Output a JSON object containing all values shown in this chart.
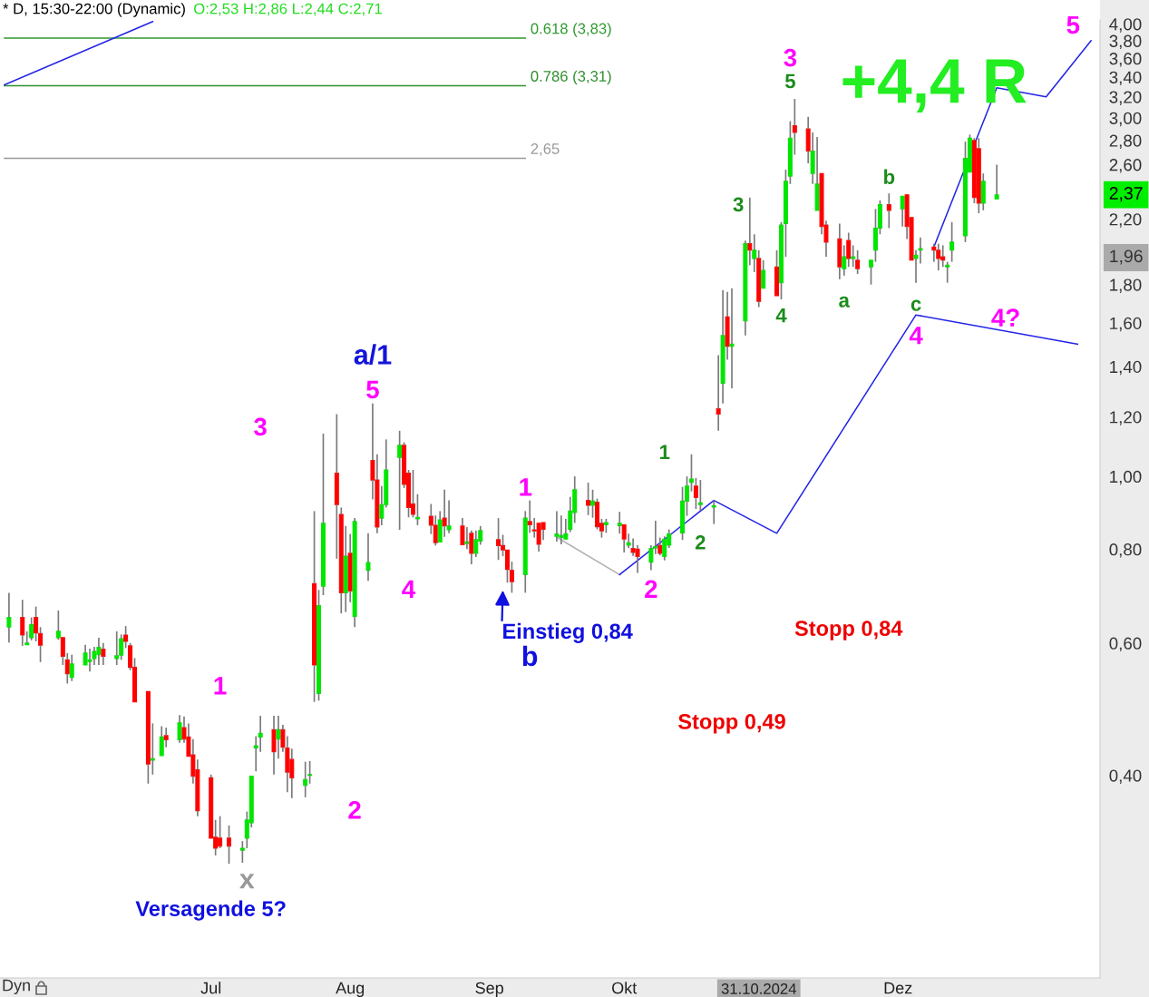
{
  "chart_data": {
    "type": "candlestick",
    "title": "* D, 15:30-22:00 (Dynamic)",
    "subtitle": "O:2,53 H:2,86 L:2,44 C:2,71",
    "x": [
      "2024-05-17",
      "2024-05-20",
      "2024-05-21",
      "2024-05-22",
      "2024-05-23",
      "2024-05-24",
      "2024-05-28",
      "2024-05-29",
      "2024-05-30",
      "2024-05-31",
      "2024-06-03",
      "2024-06-04",
      "2024-06-05",
      "2024-06-06",
      "2024-06-07",
      "2024-06-10",
      "2024-06-11",
      "2024-06-12",
      "2024-06-13",
      "2024-06-14",
      "2024-06-17",
      "2024-06-18",
      "2024-06-20",
      "2024-06-21",
      "2024-06-24",
      "2024-06-25",
      "2024-06-26",
      "2024-06-27",
      "2024-06-28",
      "2024-07-01",
      "2024-07-02",
      "2024-07-03",
      "2024-07-05",
      "2024-07-08",
      "2024-07-09",
      "2024-07-10",
      "2024-07-11",
      "2024-07-12",
      "2024-07-15",
      "2024-07-16",
      "2024-07-17",
      "2024-07-18",
      "2024-07-19",
      "2024-07-22",
      "2024-07-23",
      "2024-07-24",
      "2024-07-25",
      "2024-07-26",
      "2024-07-29",
      "2024-07-30",
      "2024-07-31",
      "2024-08-01",
      "2024-08-02",
      "2024-08-05",
      "2024-08-06",
      "2024-08-07",
      "2024-08-08",
      "2024-08-09",
      "2024-08-12",
      "2024-08-13",
      "2024-08-14",
      "2024-08-15",
      "2024-08-16",
      "2024-08-19",
      "2024-08-20",
      "2024-08-21",
      "2024-08-22",
      "2024-08-23",
      "2024-08-26",
      "2024-08-27",
      "2024-08-28",
      "2024-08-29",
      "2024-08-30",
      "2024-09-03",
      "2024-09-04",
      "2024-09-05",
      "2024-09-06",
      "2024-09-09",
      "2024-09-10",
      "2024-09-11",
      "2024-09-12",
      "2024-09-13",
      "2024-09-16",
      "2024-09-17",
      "2024-09-18",
      "2024-09-19",
      "2024-09-20",
      "2024-09-23",
      "2024-09-24",
      "2024-09-25",
      "2024-09-26",
      "2024-09-27",
      "2024-09-30",
      "2024-10-01",
      "2024-10-02",
      "2024-10-03",
      "2024-10-04",
      "2024-10-07",
      "2024-10-08",
      "2024-10-09",
      "2024-10-10",
      "2024-10-11",
      "2024-10-14",
      "2024-10-15",
      "2024-10-16",
      "2024-10-17",
      "2024-10-18",
      "2024-10-21",
      "2024-10-22",
      "2024-10-23",
      "2024-10-24",
      "2024-10-25",
      "2024-10-28",
      "2024-10-29",
      "2024-10-30",
      "2024-10-31",
      "2024-11-01",
      "2024-11-04",
      "2024-11-05",
      "2024-11-06",
      "2024-11-07",
      "2024-11-08",
      "2024-11-11",
      "2024-11-12",
      "2024-11-13",
      "2024-11-14",
      "2024-11-15",
      "2024-11-18",
      "2024-11-19",
      "2024-11-20",
      "2024-11-21",
      "2024-11-22",
      "2024-11-25",
      "2024-11-26",
      "2024-11-27",
      "2024-11-29",
      "2024-12-02",
      "2024-12-03",
      "2024-12-04",
      "2024-12-05",
      "2024-12-06",
      "2024-12-09",
      "2024-12-10",
      "2024-12-11",
      "2024-12-12",
      "2024-12-13",
      "2024-12-16",
      "2024-12-17",
      "2024-12-18",
      "2024-12-19",
      "2024-12-20",
      "2024-12-23"
    ],
    "ohlc": [
      [
        0.63,
        0.7,
        0.601,
        0.649
      ],
      [
        0.649,
        0.685,
        0.595,
        0.615
      ],
      [
        0.597,
        0.622,
        0.595,
        0.6
      ],
      [
        0.61,
        0.649,
        0.605,
        0.635
      ],
      [
        0.649,
        0.671,
        0.603,
        0.619
      ],
      [
        0.618,
        0.63,
        0.566,
        0.596
      ],
      [
        0.61,
        0.663,
        0.606,
        0.622
      ],
      [
        0.61,
        0.61,
        0.561,
        0.576
      ],
      [
        0.57,
        0.582,
        0.53,
        0.546
      ],
      [
        0.54,
        0.579,
        0.534,
        0.563
      ],
      [
        0.561,
        0.597,
        0.56,
        0.582
      ],
      [
        0.567,
        0.59,
        0.55,
        0.57
      ],
      [
        0.572,
        0.593,
        0.561,
        0.585
      ],
      [
        0.579,
        0.61,
        0.561,
        0.592
      ],
      [
        0.589,
        0.6,
        0.561,
        0.576
      ],
      [
        0.572,
        0.622,
        0.561,
        0.577
      ],
      [
        0.578,
        0.616,
        0.57,
        0.608
      ],
      [
        0.615,
        0.632,
        0.591,
        0.603
      ],
      [
        0.595,
        0.6,
        0.552,
        0.557
      ],
      [
        0.557,
        0.573,
        0.499,
        0.501
      ],
      [
        0.517,
        0.519,
        0.39,
        0.414
      ],
      [
        0.419,
        0.469,
        0.401,
        0.421
      ],
      [
        0.425,
        0.465,
        0.423,
        0.45
      ],
      [
        0.452,
        0.463,
        0.436,
        0.446
      ],
      [
        0.446,
        0.481,
        0.442,
        0.47
      ],
      [
        0.463,
        0.479,
        0.442,
        0.447
      ],
      [
        0.45,
        0.469,
        0.422,
        0.424
      ],
      [
        0.426,
        0.447,
        0.39,
        0.399
      ],
      [
        0.407,
        0.42,
        0.353,
        0.359
      ],
      [
        0.397,
        0.401,
        0.33,
        0.33
      ],
      [
        0.331,
        0.349,
        0.313,
        0.32
      ],
      [
        0.33,
        0.353,
        0.32,
        0.322
      ],
      [
        0.33,
        0.343,
        0.305,
        0.322
      ],
      [
        0.318,
        0.327,
        0.306,
        0.32
      ],
      [
        0.33,
        0.358,
        0.32,
        0.349
      ],
      [
        0.346,
        0.401,
        0.341,
        0.399
      ],
      [
        0.435,
        0.451,
        0.405,
        0.438
      ],
      [
        0.45,
        0.48,
        0.43,
        0.455
      ],
      [
        0.46,
        0.48,
        0.401,
        0.43
      ],
      [
        0.447,
        0.48,
        0.421,
        0.46
      ],
      [
        0.46,
        0.467,
        0.43,
        0.436
      ],
      [
        0.435,
        0.451,
        0.38,
        0.404
      ],
      [
        0.42,
        0.434,
        0.373,
        0.397
      ],
      [
        0.388,
        0.417,
        0.374,
        0.395
      ],
      [
        0.4,
        0.418,
        0.39,
        0.401
      ],
      [
        0.72,
        0.899,
        0.501,
        0.561
      ],
      [
        0.514,
        0.706,
        0.503,
        0.673
      ],
      [
        0.714,
        1.14,
        0.695,
        0.866
      ],
      [
        1.01,
        1.21,
        0.777,
        0.917
      ],
      [
        0.89,
        0.909,
        0.657,
        0.7
      ],
      [
        0.7,
        0.859,
        0.66,
        0.783
      ],
      [
        0.79,
        0.838,
        0.68,
        0.704
      ],
      [
        0.651,
        0.88,
        0.63,
        0.871
      ],
      [
        0.75,
        0.84,
        0.726,
        0.768
      ],
      [
        1.05,
        1.25,
        0.932,
        0.989
      ],
      [
        0.989,
        1.07,
        0.84,
        0.856
      ],
      [
        0.88,
        0.971,
        0.861,
        0.917
      ],
      [
        0.917,
        1.12,
        0.909,
        1.02
      ],
      [
        1.06,
        1.15,
        0.849,
        1.1
      ],
      [
        1.1,
        1.11,
        0.965,
        0.976
      ],
      [
        1.01,
        1.02,
        0.882,
        0.909
      ],
      [
        0.919,
        1.02,
        0.882,
        0.89
      ],
      [
        0.878,
        0.947,
        0.861,
        0.882
      ],
      [
        0.885,
        0.919,
        0.838,
        0.861
      ],
      [
        0.861,
        0.887,
        0.809,
        0.816
      ],
      [
        0.818,
        0.899,
        0.814,
        0.875
      ],
      [
        0.88,
        0.96,
        0.831,
        0.859
      ],
      [
        0.849,
        0.929,
        0.84,
        0.859
      ],
      [
        0.859,
        0.88,
        0.809,
        0.811
      ],
      [
        0.814,
        0.856,
        0.8,
        0.818
      ],
      [
        0.84,
        0.847,
        0.764,
        0.79
      ],
      [
        0.79,
        0.847,
        0.781,
        0.824
      ],
      [
        0.82,
        0.859,
        0.811,
        0.847
      ],
      [
        0.824,
        0.88,
        0.774,
        0.809
      ],
      [
        0.809,
        0.836,
        0.783,
        0.798
      ],
      [
        0.798,
        0.798,
        0.722,
        0.752
      ],
      [
        0.75,
        0.77,
        0.7,
        0.724
      ],
      [
        0.74,
        0.899,
        0.7,
        0.88
      ],
      [
        0.871,
        0.929,
        0.841,
        0.862
      ],
      [
        0.849,
        0.88,
        0.829,
        0.846
      ],
      [
        0.866,
        0.871,
        0.794,
        0.812
      ],
      [
        0.868,
        0.873,
        0.823,
        0.85
      ],
      [
        0.832,
        0.899,
        0.819,
        0.838
      ],
      [
        0.829,
        0.887,
        0.812,
        0.834
      ],
      [
        0.825,
        0.878,
        0.823,
        0.839
      ],
      [
        0.85,
        0.939,
        0.843,
        0.899
      ],
      [
        0.895,
        1.0,
        0.867,
        0.96
      ],
      [
        0.929,
        0.981,
        0.888,
        0.915
      ],
      [
        0.915,
        0.96,
        0.881,
        0.927
      ],
      [
        0.924,
        0.934,
        0.85,
        0.857
      ],
      [
        0.866,
        0.878,
        0.829,
        0.846
      ],
      [
        0.862,
        0.878,
        0.841,
        0.868
      ],
      [
        0.86,
        0.897,
        0.839,
        0.866
      ],
      [
        0.862,
        0.867,
        0.792,
        0.825
      ],
      [
        0.81,
        0.839,
        0.803,
        0.816
      ],
      [
        0.802,
        0.827,
        0.784,
        0.792
      ],
      [
        0.8,
        0.81,
        0.744,
        0.782
      ],
      [
        0.769,
        0.81,
        0.75,
        0.802
      ],
      [
        0.803,
        0.873,
        0.788,
        0.807
      ],
      [
        0.809,
        0.829,
        0.785,
        0.79
      ],
      [
        0.782,
        0.832,
        0.773,
        0.825
      ],
      [
        0.81,
        0.85,
        0.803,
        0.838
      ],
      [
        0.841,
        0.968,
        0.823,
        0.927
      ],
      [
        0.927,
        1.0,
        0.886,
        0.971
      ],
      [
        0.982,
        1.07,
        0.955,
        0.992
      ],
      [
        0.971,
        0.995,
        0.905,
        0.937
      ],
      [
        0.917,
        0.989,
        0.9,
        0.922
      ],
      [
        0.91,
        0.929,
        0.864,
        0.914
      ],
      [
        1.23,
        1.45,
        1.15,
        1.21
      ],
      [
        1.33,
        1.77,
        1.25,
        1.54
      ],
      [
        1.63,
        1.76,
        1.43,
        1.49
      ],
      [
        1.49,
        1.78,
        1.31,
        1.5
      ],
      [
        1.61,
        2.06,
        1.54,
        2.04
      ],
      [
        2.04,
        2.35,
        1.91,
        2.0
      ],
      [
        1.95,
        2.1,
        1.87,
        2.0
      ],
      [
        1.95,
        2.0,
        1.68,
        1.71
      ],
      [
        1.78,
        1.94,
        1.78,
        1.88
      ],
      [
        1.9,
        2.0,
        1.74,
        1.74
      ],
      [
        1.81,
        2.18,
        1.72,
        2.16
      ],
      [
        2.17,
        2.56,
        1.96,
        2.47
      ],
      [
        2.51,
        2.97,
        2.45,
        2.82
      ],
      [
        2.93,
        3.18,
        2.68,
        2.87
      ],
      [
        2.9,
        3.01,
        2.61,
        2.71
      ],
      [
        2.53,
        2.87,
        2.45,
        2.71
      ],
      [
        2.26,
        2.83,
        2.26,
        2.45
      ],
      [
        2.53,
        2.54,
        2.1,
        2.15
      ],
      [
        2.16,
        2.19,
        1.96,
        2.05
      ],
      [
        2.07,
        2.17,
        1.83,
        1.9
      ],
      [
        1.89,
        2.03,
        1.85,
        1.96
      ],
      [
        2.06,
        2.11,
        1.9,
        1.95
      ],
      [
        1.95,
        2.03,
        1.9,
        1.96
      ],
      [
        1.94,
        2.0,
        1.86,
        1.89
      ],
      [
        1.9,
        1.95,
        1.8,
        1.94
      ],
      [
        2.0,
        2.27,
        1.93,
        2.14
      ],
      [
        2.14,
        2.33,
        2.1,
        2.3
      ],
      [
        2.3,
        2.38,
        2.14,
        2.26
      ],
      [
        2.27,
        2.37,
        2.15,
        2.36
      ],
      [
        2.37,
        2.37,
        2.07,
        2.15
      ],
      [
        2.21,
        2.21,
        1.93,
        1.94
      ],
      [
        1.95,
        2.0,
        1.81,
        1.97
      ],
      [
        2.0,
        2.08,
        1.92,
        2.01
      ],
      [
        2.02,
        2.04,
        1.93,
        2.0
      ],
      [
        2.0,
        2.04,
        1.88,
        1.95
      ],
      [
        1.96,
        2.03,
        1.9,
        1.94
      ],
      [
        1.9,
        1.93,
        1.81,
        1.91
      ],
      [
        2.0,
        2.18,
        1.93,
        2.05
      ],
      [
        2.09,
        2.79,
        2.05,
        2.65
      ],
      [
        2.54,
        2.85,
        2.54,
        2.82
      ],
      [
        2.8,
        2.82,
        2.31,
        2.35
      ],
      [
        2.73,
        2.82,
        2.24,
        2.31
      ],
      [
        2.31,
        2.53,
        2.26,
        2.47
      ],
      [
        2.34,
        2.6,
        2.34,
        2.37
      ]
    ],
    "colors": [
      "#00e600",
      "#ff0000",
      "#00e600",
      "#00e600",
      "#ff0000",
      "#ff0000",
      "#00e600",
      "#ff0000",
      "#ff0000",
      "#00e600",
      "#00e600",
      "#00e600",
      "#00e600",
      "#00e600",
      "#ff0000",
      "#00e600",
      "#00e600",
      "#ff0000",
      "#ff0000",
      "#ff0000",
      "#ff0000",
      "#00e600",
      "#00e600",
      "#ff0000",
      "#00e600",
      "#ff0000",
      "#ff0000",
      "#ff0000",
      "#ff0000",
      "#ff0000",
      "#ff0000",
      "#ff0000",
      "#ff0000",
      "#00e600",
      "#00e600",
      "#00e600",
      "#00e600",
      "#00e600",
      "#ff0000",
      "#00e600",
      "#ff0000",
      "#ff0000",
      "#ff0000",
      "#00e600",
      "#00e600",
      "#ff0000",
      "#00e600",
      "#00e600",
      "#ff0000",
      "#ff0000",
      "#00e600",
      "#ff0000",
      "#00e600",
      "#00e600",
      "#ff0000",
      "#ff0000",
      "#00e600",
      "#00e600",
      "#00e600",
      "#ff0000",
      "#ff0000",
      "#ff0000",
      "#00e600",
      "#ff0000",
      "#ff0000",
      "#00e600",
      "#ff0000",
      "#00e600",
      "#ff0000",
      "#00e600",
      "#ff0000",
      "#00e600",
      "#00e600",
      "#ff0000",
      "#ff0000",
      "#ff0000",
      "#ff0000",
      "#00e600",
      "#ff0000",
      "#ff0000",
      "#ff0000",
      "#ff0000",
      "#00e600",
      "#00e600",
      "#00e600",
      "#00e600",
      "#00e600",
      "#ff0000",
      "#00e600",
      "#ff0000",
      "#ff0000",
      "#00e600",
      "#00e600",
      "#ff0000",
      "#00e600",
      "#ff0000",
      "#ff0000",
      "#00e600",
      "#00e600",
      "#ff0000",
      "#00e600",
      "#00e600",
      "#00e600",
      "#00e600",
      "#00e600",
      "#ff0000",
      "#00e600",
      "#00e600",
      "#ff0000",
      "#00e600",
      "#ff0000",
      "#00e600",
      "#00e600",
      "#ff0000",
      "#00e600",
      "#ff0000",
      "#00e600",
      "#ff0000",
      "#00e600",
      "#00e600",
      "#00e600",
      "#ff0000",
      "#ff0000",
      "#00e600",
      "#00e600",
      "#ff0000",
      "#ff0000",
      "#ff0000",
      "#00e600",
      "#ff0000",
      "#00e600",
      "#ff0000",
      "#00e600",
      "#00e600",
      "#00e600",
      "#ff0000",
      "#00e600",
      "#ff0000",
      "#ff0000",
      "#00e600",
      "#00e600",
      "#ff0000",
      "#ff0000",
      "#ff0000",
      "#00e600",
      "#00e600",
      "#00e600",
      "#00e600",
      "#ff0000",
      "#ff0000",
      "#00e600",
      "#00e600"
    ],
    "series": [
      {
        "type": "line",
        "name": "0.618 (3,83)",
        "color": "#2e9a2e",
        "x": [
          "2024-05-16",
          "2024-09-09"
        ],
        "values": [
          3.83,
          3.83
        ]
      },
      {
        "type": "line",
        "name": "0.786 (3,31)",
        "color": "#2f8f2f",
        "x": [
          "2024-05-16",
          "2024-09-09"
        ],
        "values": [
          3.31,
          3.31
        ]
      },
      {
        "type": "line",
        "name": "2,65",
        "color": "#999999",
        "x": [
          "2024-05-16",
          "2024-09-09"
        ],
        "values": [
          2.65,
          2.65
        ]
      },
      {
        "type": "line",
        "color": "#2323e8",
        "x": [
          "2024-05-16",
          "2024-06-18"
        ],
        "values": [
          3.32,
          4.03
        ]
      },
      {
        "type": "line",
        "color": "#b0b0b0",
        "x": [
          "2024-09-16",
          "2024-09-30"
        ],
        "values": [
          0.83,
          0.74
        ]
      },
      {
        "type": "line",
        "color": "#2323e8",
        "x": [
          "2024-09-30",
          "2024-10-21",
          "2024-11-04",
          "2024-12-05",
          "2025-01-10"
        ],
        "values": [
          0.74,
          0.929,
          0.84,
          1.64,
          1.5
        ]
      },
      {
        "type": "line",
        "color": "#2323e8",
        "x": [
          "2024-12-09",
          "2024-12-23",
          "2025-01-03",
          "2025-01-13"
        ],
        "values": [
          2.02,
          3.29,
          3.2,
          3.8
        ]
      }
    ],
    "log": true,
    "ylim": [
      0.215,
      4.05
    ],
    "yticks": [
      {
        "value": 0.4,
        "label": "0,40"
      },
      {
        "value": 0.6,
        "label": "0,60"
      },
      {
        "value": 0.8,
        "label": "0,80"
      },
      {
        "value": 1.0,
        "label": "1,00"
      },
      {
        "value": 1.2,
        "label": "1,20"
      },
      {
        "value": 1.4,
        "label": "1,40"
      },
      {
        "value": 1.6,
        "label": "1,60"
      },
      {
        "value": 1.8,
        "label": "1,80"
      },
      {
        "value": 2.2,
        "label": "2,20"
      },
      {
        "value": 2.6,
        "label": "2,60"
      },
      {
        "value": 2.8,
        "label": "2,80"
      },
      {
        "value": 3.0,
        "label": "3,00"
      },
      {
        "value": 3.2,
        "label": "3,20"
      },
      {
        "value": 3.4,
        "label": "3,40"
      },
      {
        "value": 3.6,
        "label": "3,60"
      },
      {
        "value": 3.8,
        "label": "3,80"
      },
      {
        "value": 4.0,
        "label": "4,00"
      }
    ],
    "xlim": [
      "2024-05-15",
      "2025-01-15"
    ],
    "xticks": [
      {
        "value": "2024-07-01",
        "label": "Jul"
      },
      {
        "value": "2024-08-01",
        "label": "Aug"
      },
      {
        "value": "2024-09-01",
        "label": "Sep"
      },
      {
        "value": "2024-10-01",
        "label": "Okt"
      },
      {
        "value": "2024-12-01",
        "label": "Dez"
      }
    ],
    "annotations": [
      "a/1",
      "5",
      "3",
      "1",
      "2",
      "4",
      "1",
      "2",
      "1",
      "2",
      "3",
      "4",
      "5",
      "3",
      "a",
      "b",
      "c",
      "4",
      "4?",
      "5",
      "+4,4 R",
      "Einstieg 0,84",
      "b",
      "Stopp 0,84",
      "Stopp 0,49",
      "Versagende 5?",
      "x",
      "2,37",
      "1,96",
      "31.10.2024",
      "Dyn"
    ]
  }
}
